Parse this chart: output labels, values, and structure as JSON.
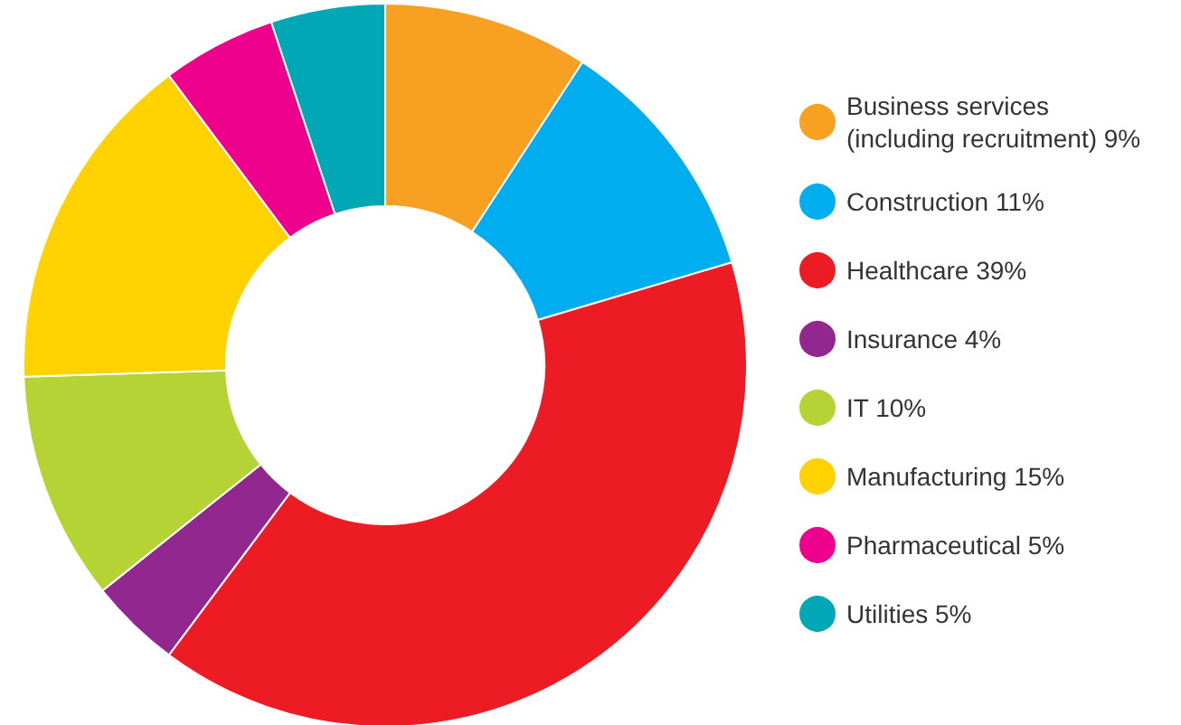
{
  "chart_data": {
    "type": "donut",
    "categories": [
      "Business services (including recruitment)",
      "Construction",
      "Healthcare",
      "Insurance",
      "IT",
      "Manufacturing",
      "Pharmaceutical",
      "Utilities"
    ],
    "values": [
      9,
      11,
      39,
      4,
      10,
      15,
      5,
      5
    ],
    "value_labels": [
      "9%",
      "11%",
      "39%",
      "4%",
      "10%",
      "15%",
      "5%",
      "5%"
    ],
    "colors": [
      "#f7a021",
      "#00aeef",
      "#ed1c24",
      "#92278f",
      "#b5d334",
      "#ffd200",
      "#ec008c",
      "#00a7b5"
    ],
    "legend": "right"
  }
}
